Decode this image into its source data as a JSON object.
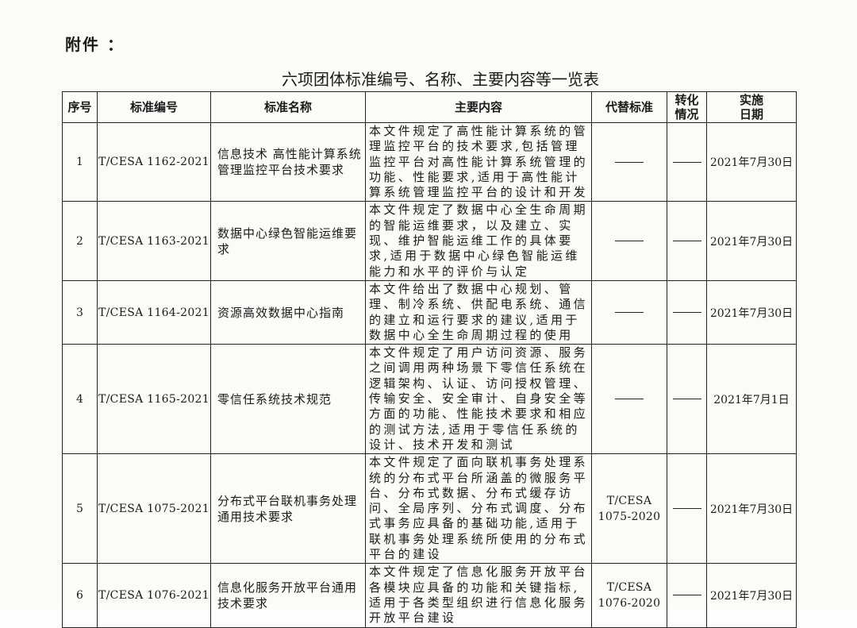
{
  "attachment_label": "附件 ：",
  "title": "六项团体标准编号、名称、主要内容等一览表",
  "headers": [
    "序号",
    "标准编号",
    "标准名称",
    "主要内容",
    "代替标准",
    "转化情况",
    "实施日期"
  ],
  "rows": [
    {
      "no": "1",
      "code": "T/CESA 1162-2021",
      "name": "信息技术 高性能计算系统管理监控平台技术要求",
      "content": "本文件规定了高性能计算系统的管理监控平台的技术要求,包括管理监控平台对高性能计算系统管理的功能、性能要求,适用于高性能计算系统管理监控平台的设计和开发",
      "replaces": "",
      "conversion": "",
      "date": "2021年7月30日"
    },
    {
      "no": "2",
      "code": "T/CESA 1163-2021",
      "name": "数据中心绿色智能运维要求",
      "content": "本文件规定了数据中心全生命周期的智能运维要求，以及建立、实现、维护智能运维工作的具体要求,适用于数据中心绿色智能运维能力和水平的评价与认定",
      "replaces": "",
      "conversion": "",
      "date": "2021年7月30日"
    },
    {
      "no": "3",
      "code": "T/CESA 1164-2021",
      "name": "资源高效数据中心指南",
      "content": "本文件给出了数据中心规划、管理、制冷系统、供配电系统、通信的建立和运行要求的建议,适用于数据中心全生命周期过程的使用",
      "replaces": "",
      "conversion": "",
      "date": "2021年7月30日"
    },
    {
      "no": "4",
      "code": "T/CESA 1165-2021",
      "name": "零信任系统技术规范",
      "content": "本文件规定了用户访问资源、服务之间调用两种场景下零信任系统在逻辑架构、认证、访问授权管理、传输安全、安全审计、自身安全等方面的功能、性能技术要求和相应的测试方法,适用于零信任系统的设计、技术开发和测试",
      "replaces": "",
      "conversion": "",
      "date": "2021年7月1日"
    },
    {
      "no": "5",
      "code": "T/CESA 1075-2021",
      "name": "分布式平台联机事务处理通用技术要求",
      "content": "本文件规定了面向联机事务处理系统的分布式平台所涵盖的微服务平台、分布式数据、分布式缓存访问、全局序列、分布式调度、分布式事务应具备的基础功能,适用于联机事务处理系统所使用的分布式平台的建设",
      "replaces": "T/CESA 1075-2020",
      "conversion": "",
      "date": "2021年7月30日"
    },
    {
      "no": "6",
      "code": "T/CESA 1076-2021",
      "name": "信息化服务开放平台通用技术要求",
      "content": "本文件规定了信息化服务开放平台各模块应具备的功能和关键指标,适用于各类型组织进行信息化服务开放平台建设",
      "replaces": "T/CESA 1076-2020",
      "conversion": "",
      "date": "2021年7月30日"
    }
  ]
}
